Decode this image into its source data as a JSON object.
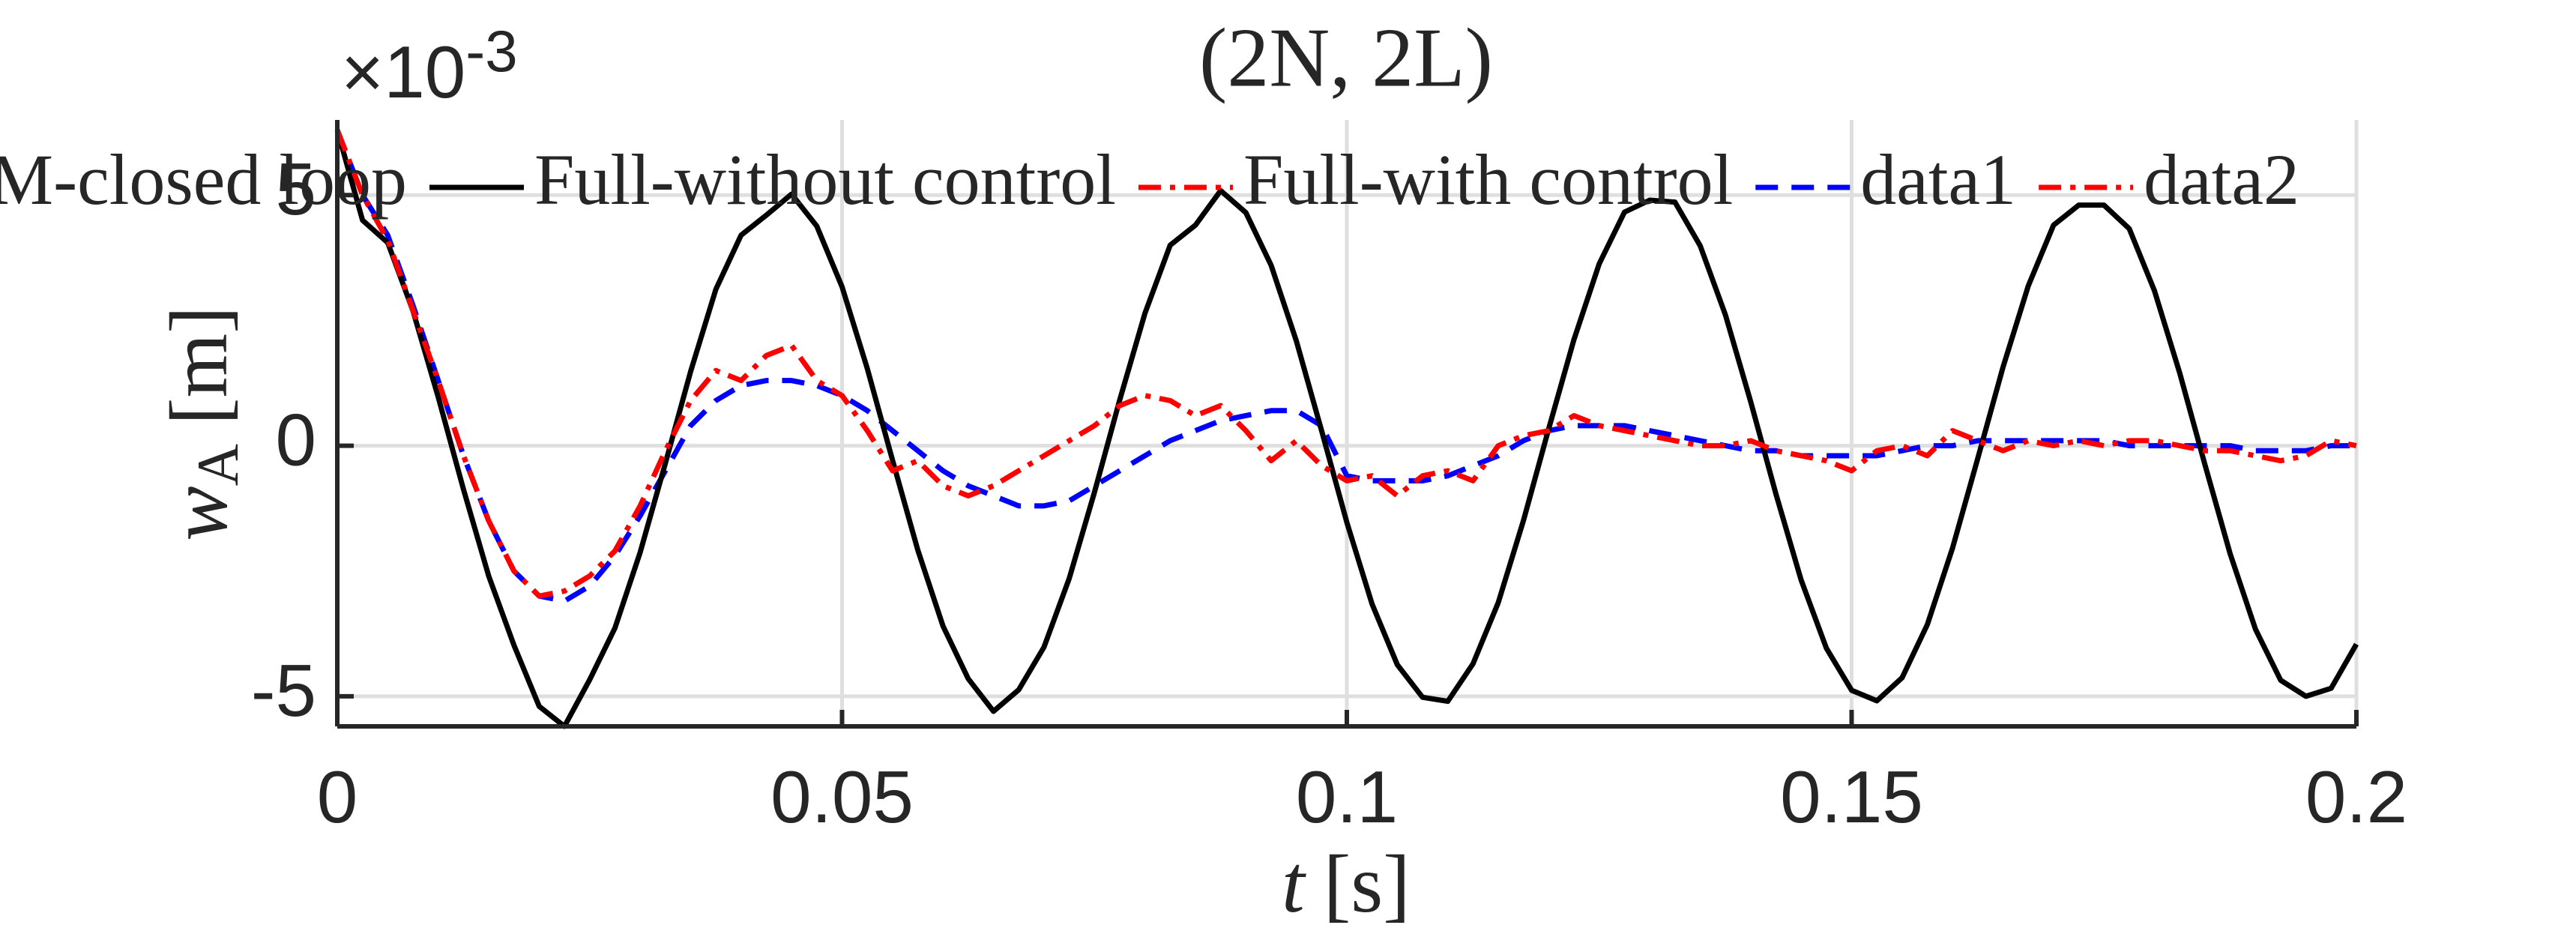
{
  "chart_data": {
    "type": "line",
    "title": "(2N, 2L)",
    "xlabel": {
      "var": "t",
      "unit": "[s]"
    },
    "ylabel": {
      "var": "w",
      "sub": "A",
      "unit": "[m]"
    },
    "y_multiplier": {
      "base": "×10",
      "exponent": "-3"
    },
    "x": [
      0,
      0.0025,
      0.005,
      0.0075,
      0.01,
      0.0125,
      0.015,
      0.0175,
      0.02,
      0.0225,
      0.025,
      0.0275,
      0.03,
      0.0325,
      0.035,
      0.0375,
      0.04,
      0.0425,
      0.045,
      0.0475,
      0.05,
      0.0525,
      0.055,
      0.0575,
      0.06,
      0.0625,
      0.065,
      0.0675,
      0.07,
      0.0725,
      0.075,
      0.0775,
      0.08,
      0.0825,
      0.085,
      0.0875,
      0.09,
      0.0925,
      0.095,
      0.0975,
      0.1,
      0.1025,
      0.105,
      0.1075,
      0.11,
      0.1125,
      0.115,
      0.1175,
      0.12,
      0.1225,
      0.125,
      0.1275,
      0.13,
      0.1325,
      0.135,
      0.1375,
      0.14,
      0.1425,
      0.145,
      0.1475,
      0.15,
      0.1525,
      0.155,
      0.1575,
      0.16,
      0.1625,
      0.165,
      0.1675,
      0.17,
      0.1725,
      0.175,
      0.1775,
      0.18,
      0.1825,
      0.185,
      0.1875,
      0.19,
      0.1925,
      0.195,
      0.1975,
      0.2
    ],
    "series": [
      {
        "name": "M-closed loop",
        "color": "#0000ff",
        "dash": "dashed",
        "values": [
          6.3,
          5.0,
          4.2,
          2.8,
          1.3,
          -0.2,
          -1.5,
          -2.5,
          -3.0,
          -3.1,
          -2.8,
          -2.2,
          -1.4,
          -0.5,
          0.4,
          0.9,
          1.2,
          1.3,
          1.3,
          1.2,
          1.0,
          0.7,
          0.3,
          -0.1,
          -0.5,
          -0.8,
          -1.0,
          -1.2,
          -1.2,
          -1.1,
          -0.8,
          -0.5,
          -0.2,
          0.1,
          0.3,
          0.5,
          0.6,
          0.7,
          0.7,
          0.4,
          -0.6,
          -0.7,
          -0.7,
          -0.7,
          -0.6,
          -0.4,
          -0.2,
          0.1,
          0.3,
          0.4,
          0.4,
          0.4,
          0.3,
          0.2,
          0.1,
          0.0,
          -0.1,
          -0.1,
          -0.2,
          -0.2,
          -0.2,
          -0.2,
          -0.1,
          0.0,
          0.0,
          0.1,
          0.1,
          0.1,
          0.1,
          0.1,
          0.1,
          0.0,
          0.0,
          0.0,
          0.0,
          0.0,
          -0.1,
          -0.1,
          -0.1,
          0.0,
          0.0
        ]
      },
      {
        "name": "Full-without control",
        "color": "#000000",
        "dash": "solid",
        "values": [
          6.3,
          4.5,
          4.05,
          2.69,
          0.97,
          -0.87,
          -2.6,
          -3.98,
          -5.2,
          -5.6,
          -4.67,
          -3.64,
          -2.13,
          -0.35,
          1.48,
          3.12,
          4.2,
          4.6,
          5.02,
          4.38,
          3.17,
          1.54,
          -0.29,
          -2.08,
          -3.6,
          -4.65,
          -5.3,
          -4.87,
          -4.02,
          -2.65,
          -0.93,
          0.91,
          2.64,
          4.0,
          4.4,
          5.09,
          4.65,
          3.6,
          2.09,
          0.3,
          -1.53,
          -3.16,
          -4.37,
          -5.02,
          -5.1,
          -4.35,
          -3.13,
          -1.49,
          0.34,
          2.12,
          3.63,
          4.66,
          4.9,
          4.86,
          3.99,
          2.61,
          0.88,
          -0.96,
          -2.68,
          -4.04,
          -4.88,
          -5.09,
          -4.63,
          -3.57,
          -2.04,
          -0.25,
          1.57,
          3.19,
          4.4,
          4.8,
          4.8,
          4.33,
          3.09,
          1.45,
          -0.38,
          -2.16,
          -3.66,
          -4.68,
          -5.0,
          -4.84,
          -3.96
        ]
      },
      {
        "name": "Full-with control",
        "color": "#ff0000",
        "dash": "dashdot",
        "values": [
          6.3,
          5.0,
          4.1,
          2.7,
          1.3,
          -0.2,
          -1.5,
          -2.5,
          -3.0,
          -2.9,
          -2.6,
          -2.1,
          -1.2,
          -0.1,
          0.9,
          1.5,
          1.3,
          1.8,
          2.0,
          1.3,
          1.0,
          0.3,
          -0.5,
          -0.3,
          -0.8,
          -1.0,
          -0.8,
          -0.5,
          -0.2,
          0.1,
          0.4,
          0.8,
          1.0,
          0.9,
          0.6,
          0.8,
          0.3,
          -0.3,
          0.1,
          -0.4,
          -0.7,
          -0.6,
          -1.0,
          -0.6,
          -0.5,
          -0.7,
          0.0,
          0.2,
          0.3,
          0.6,
          0.4,
          0.3,
          0.2,
          0.1,
          0.0,
          0.0,
          0.1,
          -0.1,
          -0.2,
          -0.3,
          -0.5,
          -0.1,
          0.0,
          -0.2,
          0.3,
          0.1,
          -0.1,
          0.1,
          0.0,
          0.1,
          0.0,
          0.1,
          0.1,
          0.0,
          -0.1,
          -0.1,
          -0.2,
          -0.3,
          -0.2,
          0.1,
          0.0
        ]
      },
      {
        "name": "data1",
        "color": "#0000ff",
        "dash": "dashed"
      },
      {
        "name": "data2",
        "color": "#ff0000",
        "dash": "dashdot"
      }
    ],
    "xlim": [
      0,
      0.2
    ],
    "ylim": [
      -5.6,
      6.5
    ],
    "xticks": [
      0,
      0.05,
      0.1,
      0.15,
      0.2
    ],
    "yticks": [
      -5,
      0,
      5
    ],
    "grid": true,
    "legend": "top"
  }
}
